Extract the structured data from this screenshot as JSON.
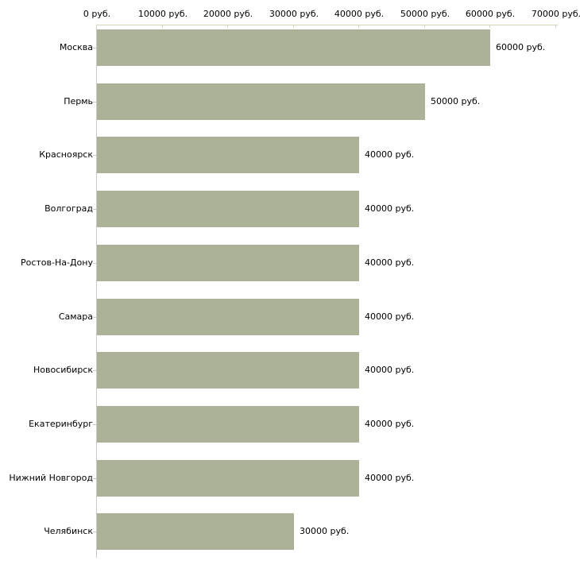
{
  "chart_data": {
    "type": "bar",
    "orientation": "horizontal",
    "title": "",
    "xlabel": "",
    "ylabel": "",
    "unit": "руб.",
    "categories": [
      "Москва",
      "Пермь",
      "Красноярск",
      "Волгоград",
      "Ростов-На-Дону",
      "Самара",
      "Новосибирск",
      "Екатеринбург",
      "Нижний Новгород",
      "Челябинск"
    ],
    "values": [
      60000,
      50000,
      40000,
      40000,
      40000,
      40000,
      40000,
      40000,
      40000,
      30000
    ],
    "value_labels": [
      "60000 руб.",
      "50000 руб.",
      "40000 руб.",
      "40000 руб.",
      "40000 руб.",
      "40000 руб.",
      "40000 руб.",
      "40000 руб.",
      "40000 руб.",
      "30000 руб."
    ],
    "xlim": [
      0,
      70000
    ],
    "x_ticks": [
      0,
      10000,
      20000,
      30000,
      40000,
      50000,
      60000,
      70000
    ],
    "x_tick_labels": [
      "0 руб.",
      "10000 руб.",
      "20000 руб.",
      "30000 руб.",
      "40000 руб.",
      "50000 руб.",
      "60000 руб.",
      "70000 руб."
    ],
    "x_axis_position": "top",
    "grid": false,
    "legend": false,
    "bar_color": "#abb298",
    "x_axis_line_color": "#d6d6bb",
    "y_axis_line_color": "#c9c9c9",
    "text_color": "#000000"
  }
}
